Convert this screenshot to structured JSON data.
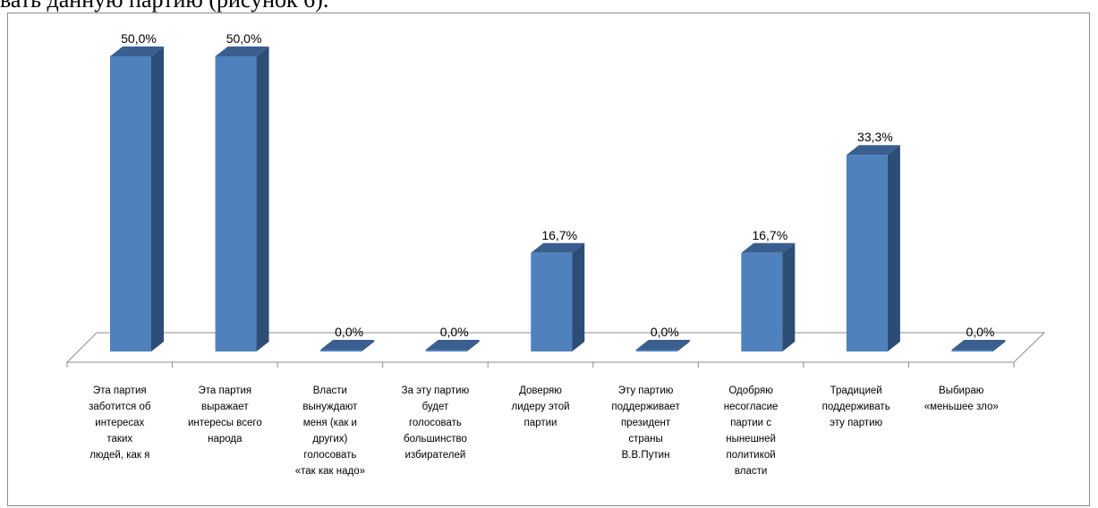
{
  "page_text": "вать данную партию (рисунок 6).",
  "chart_data": {
    "type": "bar",
    "categories": [
      [
        "Эта партия",
        "заботится об",
        "интересах",
        "таких",
        "людей, как я"
      ],
      [
        "Эта партия",
        "выражает",
        "интересы всего",
        "народа"
      ],
      [
        "Власти",
        "вынуждают",
        "меня (как и",
        "других)",
        "голосовать",
        "«так как надо»"
      ],
      [
        "За эту партию",
        "будет",
        "голосовать",
        "большинство",
        "избирателей"
      ],
      [
        "Доверяю",
        "лидеру этой",
        "партии"
      ],
      [
        "Эту партию",
        "поддерживает",
        "президент",
        "страны",
        "В.В.Путин"
      ],
      [
        "Одобряю",
        "несогласие",
        "партии с",
        "нынешней",
        "политикой",
        "власти"
      ],
      [
        "Традицией",
        "поддерживать",
        "эту партию"
      ],
      [
        "Выбираю",
        "«меньшее зло»"
      ]
    ],
    "values": [
      50.0,
      50.0,
      0.0,
      0.0,
      16.7,
      0.0,
      16.7,
      33.3,
      0.0
    ],
    "data_labels": [
      "50,0%",
      "50,0%",
      "0,0%",
      "0,0%",
      "16,7%",
      "0,0%",
      "16,7%",
      "33,3%",
      "0,0%"
    ],
    "ylim": [
      0,
      50
    ],
    "grid": false,
    "legend": "none",
    "colors": {
      "front": "#4f81bd",
      "side": "#2c4d75",
      "top": "#3a5f8f",
      "floor_line": "#8c8c8c"
    }
  }
}
